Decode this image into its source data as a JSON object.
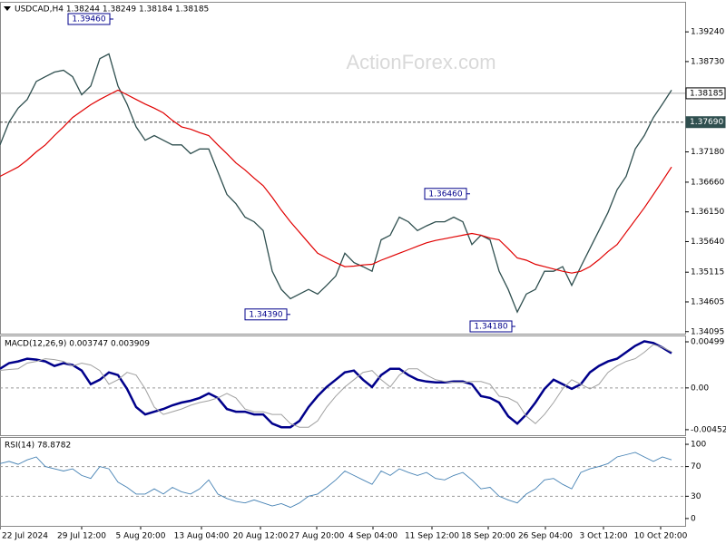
{
  "chart_data": [
    {
      "type": "price",
      "title": "USDCAD,H4  1.38244 1.38249 1.38184 1.38185",
      "watermark": "ActionForex.com",
      "x": [
        0,
        1,
        2,
        3,
        4,
        5,
        6,
        7,
        8,
        9,
        10,
        11,
        12,
        13,
        14,
        15,
        16,
        17,
        18,
        19,
        20,
        21,
        22,
        23,
        24,
        25,
        26,
        27,
        28,
        29,
        30,
        31,
        32,
        33,
        34,
        35,
        36,
        37,
        38,
        39,
        40,
        41,
        42,
        43,
        44,
        45,
        46,
        47,
        48,
        49,
        50,
        51,
        52,
        53,
        54,
        55,
        56,
        57,
        58,
        59,
        60,
        61,
        62,
        63,
        64,
        65,
        66,
        67,
        68,
        69,
        70,
        71,
        72,
        73,
        74
      ],
      "xlim": [
        0,
        75.5
      ],
      "xticks": [
        {
          "value": 0,
          "label": "22 Jul 2024"
        },
        {
          "value": 9,
          "label": "29 Jul 12:00"
        },
        {
          "value": 15.5,
          "label": "5 Aug 20:00"
        },
        {
          "value": 22.2,
          "label": "13 Aug 04:00"
        },
        {
          "value": 28.7,
          "label": "20 Aug 12:00"
        },
        {
          "value": 34.9,
          "label": "27 Aug 20:00"
        },
        {
          "value": 41.1,
          "label": "4 Sep 04:00"
        },
        {
          "value": 47.6,
          "label": "11 Sep 12:00"
        },
        {
          "value": 53.8,
          "label": "18 Sep 20:00"
        },
        {
          "value": 60.1,
          "label": "26 Sep 04:00"
        },
        {
          "value": 66.5,
          "label": "3 Oct 12:00"
        },
        {
          "value": 72.8,
          "label": "10 Oct 20:00"
        }
      ],
      "ylim": [
        1.3406,
        1.3974
      ],
      "yticks": [
        {
          "value": 1.3924,
          "label": "1.39240"
        },
        {
          "value": 1.3873,
          "label": "1.38730"
        },
        {
          "value": 1.3718,
          "label": "1.37180"
        },
        {
          "value": 1.3666,
          "label": "1.36660"
        },
        {
          "value": 1.3615,
          "label": "1.36150"
        },
        {
          "value": 1.3564,
          "label": "1.35640"
        },
        {
          "value": 1.35115,
          "label": "1.35115"
        },
        {
          "value": 1.34605,
          "label": "1.34605"
        },
        {
          "value": 1.34095,
          "label": "1.34095"
        }
      ],
      "hlines": [
        {
          "value": 1.38185,
          "label": "1.38185",
          "style": "solid"
        },
        {
          "value": 1.3769,
          "label": "1.37690",
          "style": "dashed"
        }
      ],
      "annotations": [
        {
          "text": "1.39460",
          "x": 12.5,
          "value": 1.3946
        },
        {
          "text": "1.36460",
          "x": 51.8,
          "value": 1.3646
        },
        {
          "text": "1.34390",
          "x": 32,
          "value": 1.3439
        },
        {
          "text": "1.34180",
          "x": 56.8,
          "value": 1.3418
        }
      ],
      "series": [
        {
          "color": "#2f4f4f",
          "values": [
            1.373,
            1.3769,
            1.3793,
            1.3808,
            1.3839,
            1.3847,
            1.3855,
            1.3858,
            1.3847,
            1.3816,
            1.3831,
            1.3878,
            1.3886,
            1.3831,
            1.38,
            1.3761,
            1.3738,
            1.3746,
            1.3738,
            1.373,
            1.373,
            1.3715,
            1.3723,
            1.3723,
            1.3684,
            1.3645,
            1.3629,
            1.3606,
            1.3598,
            1.3583,
            1.3513,
            1.3482,
            1.3466,
            1.3474,
            1.3482,
            1.3474,
            1.3489,
            1.3505,
            1.3544,
            1.3528,
            1.3521,
            1.3513,
            1.3567,
            1.3575,
            1.3606,
            1.3598,
            1.3583,
            1.3591,
            1.3598,
            1.3598,
            1.3606,
            1.3598,
            1.3559,
            1.3575,
            1.3567,
            1.3513,
            1.3482,
            1.3443,
            1.3474,
            1.3482,
            1.3513,
            1.3513,
            1.3521,
            1.3489,
            1.3521,
            1.3552,
            1.3583,
            1.3614,
            1.3653,
            1.3676,
            1.3723,
            1.3746,
            1.3777,
            1.38,
            1.3824
          ]
        },
        {
          "color": "#e00000",
          "values": [
            1.3676,
            1.3684,
            1.3692,
            1.3704,
            1.3718,
            1.373,
            1.3746,
            1.3761,
            1.3777,
            1.3788,
            1.3799,
            1.3808,
            1.3816,
            1.3824,
            1.3816,
            1.3808,
            1.38,
            1.3793,
            1.3785,
            1.3772,
            1.3761,
            1.3757,
            1.3751,
            1.3746,
            1.373,
            1.3715,
            1.3699,
            1.3687,
            1.3673,
            1.366,
            1.364,
            1.3618,
            1.3598,
            1.358,
            1.3562,
            1.3544,
            1.3536,
            1.3528,
            1.3521,
            1.3522,
            1.3524,
            1.3525,
            1.3532,
            1.3538,
            1.3544,
            1.355,
            1.3556,
            1.3562,
            1.3566,
            1.3569,
            1.3572,
            1.3575,
            1.3578,
            1.3575,
            1.357,
            1.3567,
            1.3552,
            1.3536,
            1.3532,
            1.3525,
            1.3521,
            1.3517,
            1.3513,
            1.351,
            1.3513,
            1.3521,
            1.3533,
            1.3547,
            1.3559,
            1.358,
            1.3601,
            1.3622,
            1.3645,
            1.3668,
            1.3692
          ]
        }
      ]
    },
    {
      "type": "macd",
      "title": "MACD(12,26,9) 0.003747 0.003909",
      "ylim": [
        -0.00512,
        0.00558
      ],
      "yticks": [
        0.00499,
        {
          "value": 0,
          "label": "0.00"
        },
        -0.004522
      ],
      "levels": [
        0
      ],
      "series": [
        {
          "color": "#00008b",
          "values": [
            0.00208,
            0.00268,
            0.00287,
            0.00317,
            0.00307,
            0.00287,
            0.00238,
            0.00268,
            0.00248,
            0.00188,
            0.0004,
            0.00089,
            0.00168,
            0.00139,
            -0.0001,
            -0.00208,
            -0.00287,
            -0.00258,
            -0.00228,
            -0.00188,
            -0.00159,
            -0.00139,
            -0.00109,
            -0.00059,
            -0.00109,
            -0.00228,
            -0.00258,
            -0.00258,
            -0.00287,
            -0.00287,
            -0.00386,
            -0.00426,
            -0.00426,
            -0.00357,
            -0.00208,
            -0.00089,
            0.0001,
            0.00089,
            0.00168,
            0.00188,
            0.00089,
            0.0001,
            0.00139,
            0.00208,
            0.00208,
            0.00139,
            0.00089,
            0.00069,
            0.00059,
            0.00059,
            0.00069,
            0.00069,
            0.0004,
            -0.00089,
            -0.00109,
            -0.00159,
            -0.00307,
            -0.00386,
            -0.00287,
            -0.00159,
            -0.0001,
            0.00089,
            0.0004,
            -0.0001,
            0.0004,
            0.00168,
            0.00238,
            0.00287,
            0.00317,
            0.00386,
            0.00456,
            0.00505,
            0.00486,
            0.00436,
            0.00375
          ]
        },
        {
          "color": "#a0a0a0",
          "values": [
            0.0019,
            0.002,
            0.00208,
            0.00268,
            0.00287,
            0.00317,
            0.00307,
            0.00287,
            0.00238,
            0.00268,
            0.00248,
            0.00188,
            0.0004,
            0.00089,
            0.00168,
            0.00139,
            -0.0001,
            -0.00208,
            -0.00287,
            -0.00258,
            -0.00228,
            -0.00188,
            -0.00159,
            -0.00139,
            -0.00109,
            -0.00059,
            -0.00109,
            -0.00228,
            -0.00258,
            -0.00258,
            -0.00287,
            -0.00287,
            -0.00386,
            -0.00426,
            -0.00426,
            -0.00357,
            -0.00208,
            -0.00089,
            0.0001,
            0.00089,
            0.00168,
            0.00188,
            0.00089,
            0.0001,
            0.00139,
            0.00208,
            0.00208,
            0.00139,
            0.00089,
            0.00069,
            0.00059,
            0.00059,
            0.00069,
            0.00069,
            0.0004,
            -0.00089,
            -0.00109,
            -0.00159,
            -0.00307,
            -0.00386,
            -0.00287,
            -0.00159,
            -0.0001,
            0.00089,
            0.0004,
            -0.0001,
            0.0004,
            0.00168,
            0.00238,
            0.00287,
            0.00317,
            0.00386,
            0.0047,
            0.0044,
            0.00391
          ]
        }
      ]
    },
    {
      "type": "rsi",
      "title": "RSI(14) 78.8782",
      "ylim": [
        -9.9,
        108.6
      ],
      "yticks": [
        100,
        70,
        30,
        0
      ],
      "levels": [
        70,
        30
      ],
      "series": [
        {
          "color": "#4682b4",
          "values": [
            74,
            77,
            73,
            79,
            83,
            70,
            67,
            64,
            67,
            58,
            54,
            70,
            67,
            49,
            42,
            33,
            33,
            40,
            33,
            42,
            36,
            33,
            40,
            52,
            33,
            27,
            23,
            21,
            25,
            21,
            17,
            20,
            15,
            21,
            30,
            33,
            42,
            52,
            64,
            58,
            52,
            46,
            64,
            58,
            67,
            62,
            58,
            62,
            54,
            52,
            58,
            62,
            52,
            40,
            42,
            30,
            25,
            21,
            33,
            40,
            52,
            54,
            46,
            40,
            62,
            67,
            70,
            74,
            83,
            86,
            89,
            83,
            77,
            83,
            79
          ]
        }
      ]
    }
  ]
}
